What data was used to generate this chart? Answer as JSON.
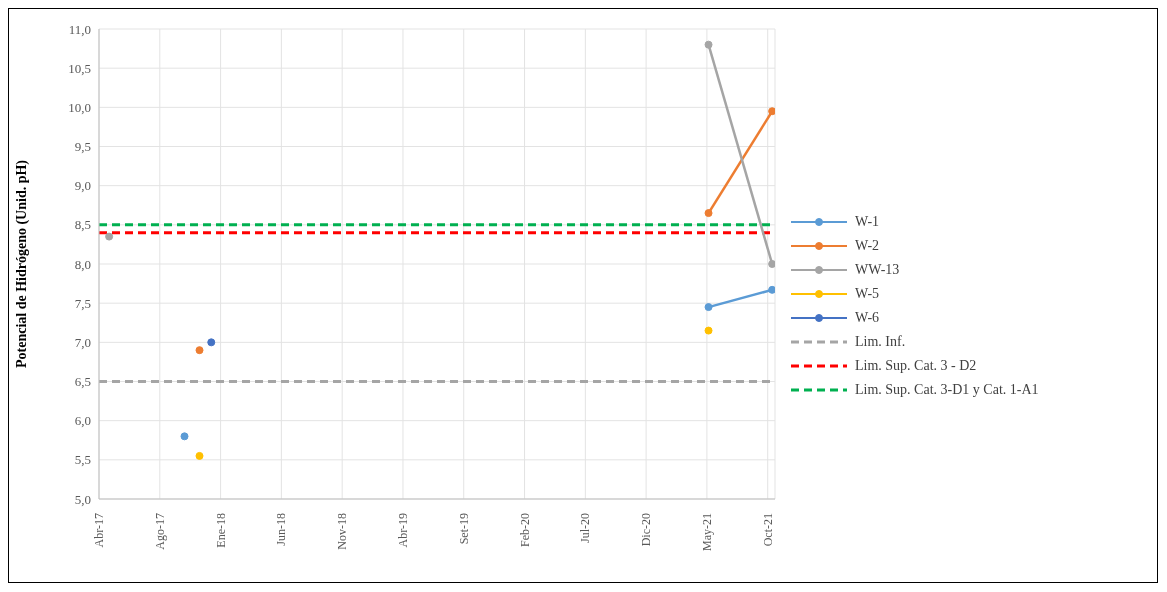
{
  "chart_data": {
    "type": "line",
    "ylabel": "Potencial de Hidrógeno (Unid. pH)",
    "x": [
      "2017-04-26",
      "2017-10-29",
      "2017-12-05",
      "2018-01-03",
      "2021-05-14",
      "2021-10-18"
    ],
    "series": [
      {
        "name": "W-1",
        "color": "#5b9bd5",
        "values": [
          null,
          5.8,
          null,
          null,
          7.45,
          7.67
        ]
      },
      {
        "name": "W-2",
        "color": "#ed7d31",
        "values": [
          null,
          null,
          6.9,
          null,
          8.65,
          9.95
        ]
      },
      {
        "name": "WW-13",
        "color": "#a5a5a5",
        "values": [
          8.35,
          null,
          null,
          null,
          10.8,
          8.0
        ]
      },
      {
        "name": "W-5",
        "type": "scatter",
        "color": "#ffc000",
        "values": [
          null,
          null,
          5.55,
          null,
          7.15,
          null
        ]
      },
      {
        "name": "W-6",
        "color": "#4472c4",
        "values": [
          null,
          null,
          null,
          7.0,
          null,
          null
        ]
      }
    ],
    "ref_lines": [
      {
        "axis": "y",
        "value": 6.5,
        "label": "Lim. Inf.",
        "color": "#a5a5a5",
        "line_style": "dashed"
      },
      {
        "axis": "y",
        "value": 8.4,
        "label": "Lim. Sup. Cat. 3 - D2",
        "color": "#ff0000",
        "line_style": "dashed"
      },
      {
        "axis": "y",
        "value": 8.5,
        "label": "Lim. Sup. Cat. 3-D1 y Cat. 1-A1",
        "color": "#00b050",
        "line_style": "dashed"
      }
    ],
    "xlim": [
      "2017-04-01",
      "2021-10-25"
    ],
    "xticks": [
      {
        "value": "2017-04-01",
        "label": "Abr-17"
      },
      {
        "value": "2017-08-29",
        "label": "Ago-17"
      },
      {
        "value": "2018-01-26",
        "label": "Ene-18"
      },
      {
        "value": "2018-06-25",
        "label": "Jun-18"
      },
      {
        "value": "2018-11-22",
        "label": "Nov-18"
      },
      {
        "value": "2019-04-21",
        "label": "Abr-19"
      },
      {
        "value": "2019-09-18",
        "label": "Set-19"
      },
      {
        "value": "2020-02-15",
        "label": "Feb-20"
      },
      {
        "value": "2020-07-14",
        "label": "Jul-20"
      },
      {
        "value": "2020-12-11",
        "label": "Dic-20"
      },
      {
        "value": "2021-05-10",
        "label": "May-21"
      },
      {
        "value": "2021-10-07",
        "label": "Oct-21"
      }
    ],
    "ylim": [
      5.0,
      11.0
    ],
    "yticks": [
      {
        "value": 5.0,
        "label": "5,0"
      },
      {
        "value": 5.5,
        "label": "5,5"
      },
      {
        "value": 6.0,
        "label": "6,0"
      },
      {
        "value": 6.5,
        "label": "6,5"
      },
      {
        "value": 7.0,
        "label": "7,0"
      },
      {
        "value": 7.5,
        "label": "7,5"
      },
      {
        "value": 8.0,
        "label": "8,0"
      },
      {
        "value": 8.5,
        "label": "8,5"
      },
      {
        "value": 9.0,
        "label": "9,0"
      },
      {
        "value": 9.5,
        "label": "9,5"
      },
      {
        "value": 10.0,
        "label": "10,0"
      },
      {
        "value": 10.5,
        "label": "10,5"
      },
      {
        "value": 11.0,
        "label": "11,0"
      }
    ],
    "grid": true,
    "legend": "right",
    "marker": "circle",
    "line_style": "solid"
  }
}
